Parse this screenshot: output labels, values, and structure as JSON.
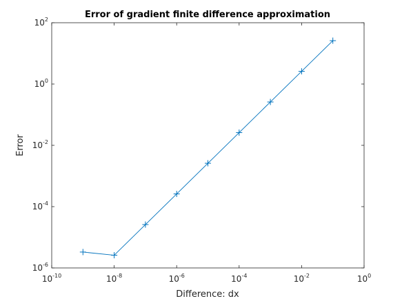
{
  "chart_data": {
    "type": "line",
    "title": "Error of gradient finite difference approximation",
    "xlabel": "Difference: dx",
    "ylabel": "Error",
    "xscale": "log",
    "yscale": "log",
    "xlim": [
      1e-10,
      1
    ],
    "ylim": [
      1e-06,
      100
    ],
    "grid": false,
    "legend": "none",
    "marker": "+",
    "color": "#0072BD",
    "x_ticks": [
      {
        "base": "10",
        "exp": "-10",
        "value": 1e-10
      },
      {
        "base": "10",
        "exp": "-8",
        "value": 1e-08
      },
      {
        "base": "10",
        "exp": "-6",
        "value": 1e-06
      },
      {
        "base": "10",
        "exp": "-4",
        "value": 0.0001
      },
      {
        "base": "10",
        "exp": "-2",
        "value": 0.01
      },
      {
        "base": "10",
        "exp": "0",
        "value": 1
      }
    ],
    "y_ticks": [
      {
        "base": "10",
        "exp": "-6",
        "value": 1e-06
      },
      {
        "base": "10",
        "exp": "-4",
        "value": 0.0001
      },
      {
        "base": "10",
        "exp": "-2",
        "value": 0.01
      },
      {
        "base": "10",
        "exp": "0",
        "value": 1
      },
      {
        "base": "10",
        "exp": "2",
        "value": 100
      }
    ],
    "series": [
      {
        "x": [
          1e-09,
          1e-08,
          1e-07,
          1e-06,
          1e-05,
          0.0001,
          0.001,
          0.01,
          0.1
        ],
        "y": [
          3.3e-06,
          2.6e-06,
          2.6e-05,
          0.00026,
          0.0026,
          0.026,
          0.26,
          2.6,
          26
        ]
      }
    ]
  }
}
